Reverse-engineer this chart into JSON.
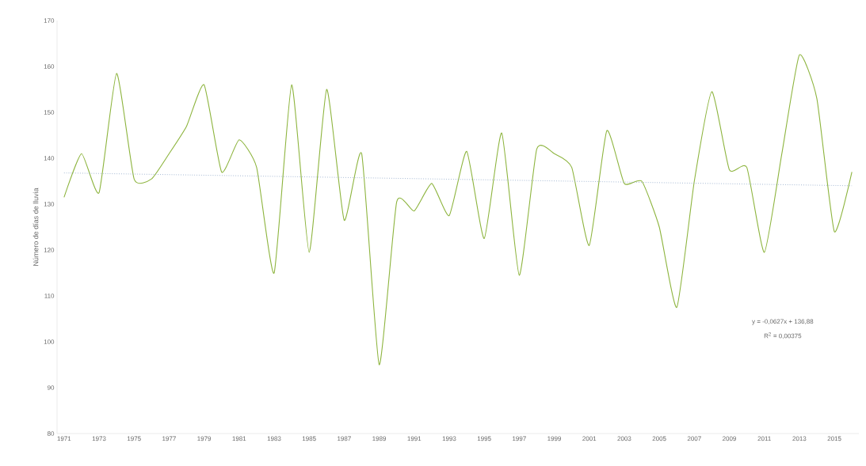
{
  "chart_data": {
    "type": "line",
    "ylabel": "Número de días de lluvia",
    "x": [
      1971,
      1972,
      1973,
      1974,
      1975,
      1976,
      1977,
      1978,
      1979,
      1980,
      1981,
      1982,
      1983,
      1984,
      1985,
      1986,
      1987,
      1988,
      1989,
      1990,
      1991,
      1992,
      1993,
      1994,
      1995,
      1996,
      1997,
      1998,
      1999,
      2000,
      2001,
      2002,
      2003,
      2004,
      2005,
      2006,
      2007,
      2008,
      2009,
      2010,
      2011,
      2012,
      2013,
      2014,
      2015,
      2016
    ],
    "series": [
      {
        "color": "#8db43e",
        "line_style": "solid",
        "values": [
          131.5,
          141,
          132.5,
          158.5,
          135.5,
          135.5,
          141,
          147,
          156,
          137,
          144,
          138,
          115,
          156,
          119.5,
          155,
          126.5,
          141,
          95,
          130.5,
          128.5,
          134.5,
          127.5,
          141.5,
          122.5,
          145.5,
          114.5,
          142,
          141,
          138,
          121,
          146,
          134.5,
          135,
          125,
          107.5,
          135,
          154.5,
          137.5,
          138,
          119.5,
          141,
          162.5,
          153,
          124,
          137
        ]
      },
      {
        "color": "#8fa8c8",
        "line_style": "dotted",
        "x": [
          1971,
          2016
        ],
        "values": [
          136.8,
          134.0
        ]
      }
    ],
    "xlim": [
      1970.6,
      2016.4
    ],
    "xticks": [
      1971,
      1973,
      1975,
      1977,
      1979,
      1981,
      1983,
      1985,
      1987,
      1989,
      1991,
      1993,
      1995,
      1997,
      1999,
      2001,
      2003,
      2005,
      2007,
      2009,
      2011,
      2013,
      2015
    ],
    "ylim": [
      80,
      170
    ],
    "yticks": [
      80,
      90,
      100,
      110,
      120,
      130,
      140,
      150,
      160,
      170
    ],
    "grid": false,
    "marker": "none",
    "annotations": [
      "y = -0,0627x + 136,88",
      "R$^{2}$ = 0,00375"
    ]
  }
}
